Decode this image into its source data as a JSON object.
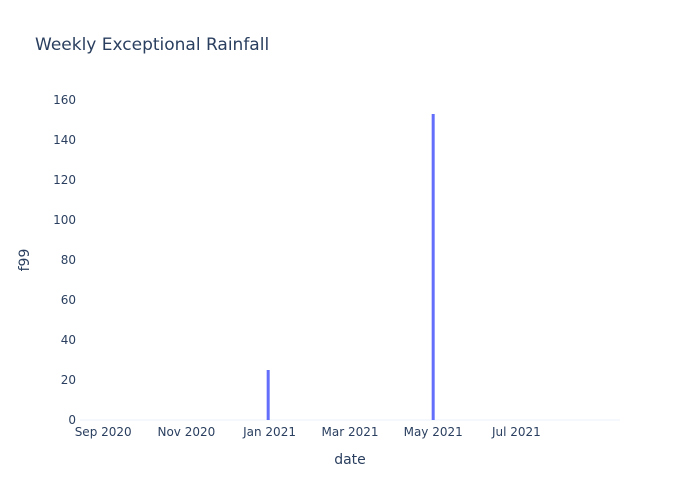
{
  "chart_data": {
    "type": "bar",
    "title": "Weekly Exceptional Rainfall",
    "xlabel": "date",
    "ylabel": "f99",
    "x_ticks": [
      "Sep 2020",
      "Nov 2020",
      "Jan 2021",
      "Mar 2021",
      "May 2021",
      "Jul 2021"
    ],
    "y_ticks": [
      0,
      20,
      40,
      60,
      80,
      100,
      120,
      140,
      160
    ],
    "ylim": [
      0,
      160
    ],
    "xlim": [
      "2020-08-15",
      "2021-09-15"
    ],
    "grid": false,
    "bar_color": "#636efa",
    "series": [
      {
        "x": [
          "2020-12-31",
          "2021-05-01"
        ],
        "values": [
          25,
          153
        ]
      }
    ]
  }
}
